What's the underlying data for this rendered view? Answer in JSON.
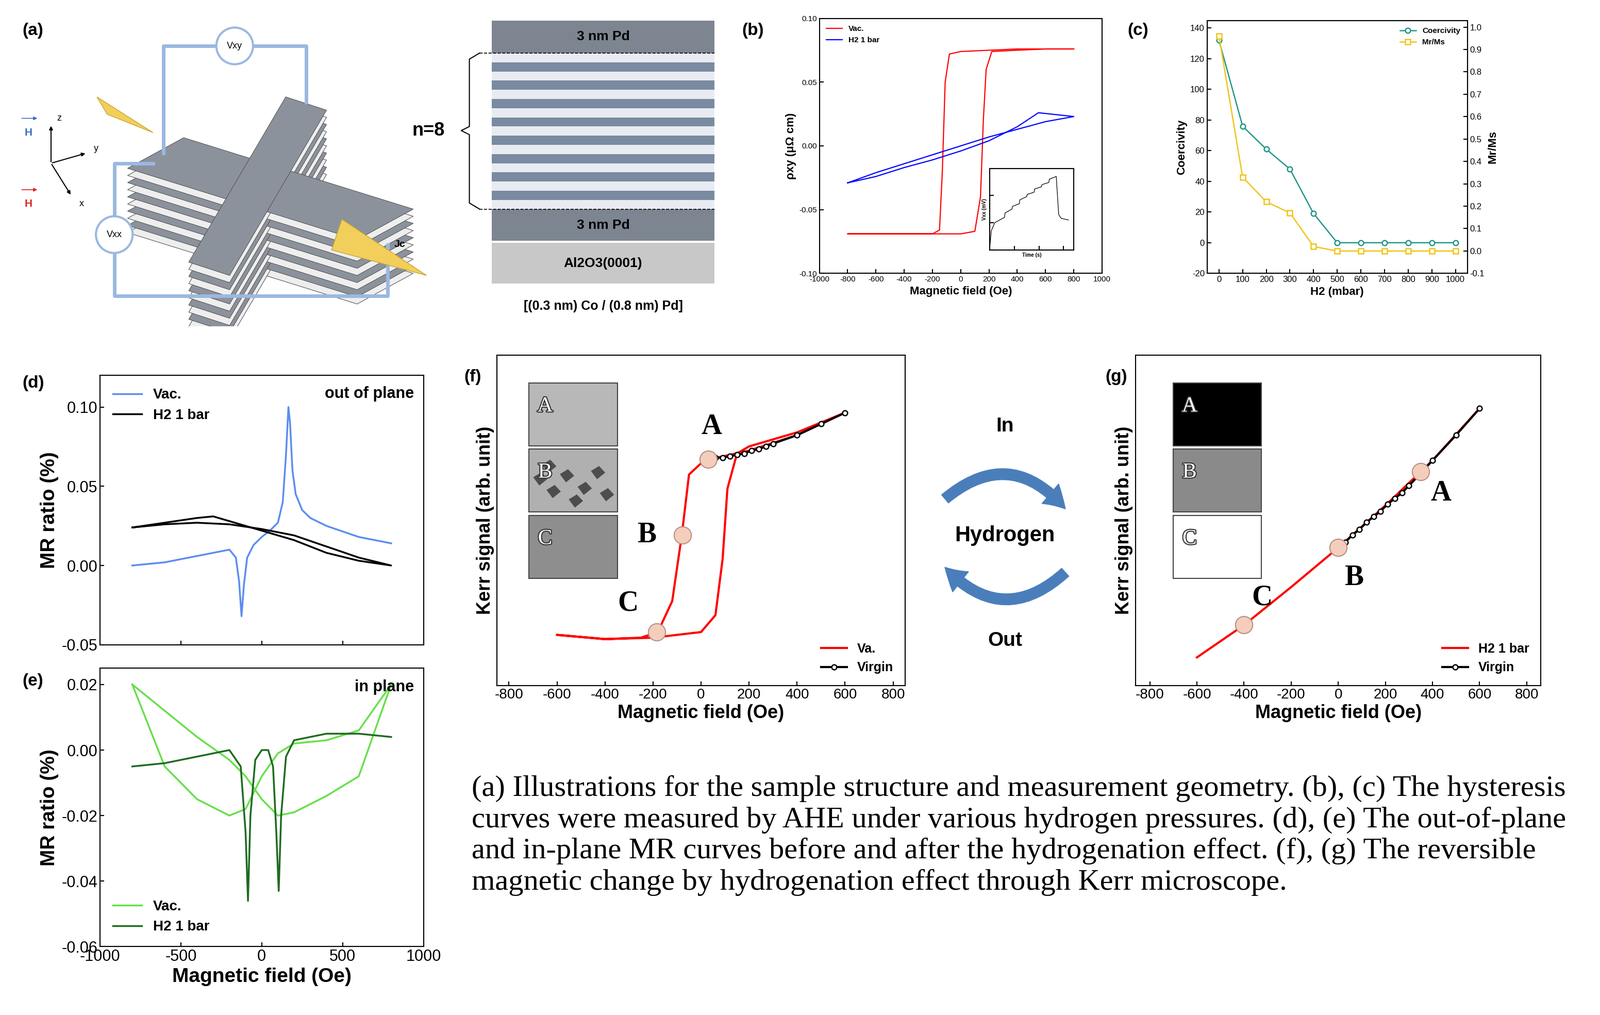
{
  "panel_a": {
    "label": "(a)",
    "device": {
      "voltage_hall": "Vxy",
      "voltage_long": "Vxx",
      "axes": [
        "z",
        "y",
        "x"
      ],
      "field_out_of_plane": "H",
      "field_in_plane": "H",
      "current": "Jc"
    },
    "stack": {
      "top_layer": "3 nm Pd",
      "repeat": "n=8",
      "bottom_layer": "3 nm Pd",
      "substrate": "Al2O3(0001)",
      "repeat_unit": "[(0.3 nm) Co / (0.8 nm) Pd]"
    }
  },
  "chart_data": [
    {
      "panel": "(b)",
      "type": "line",
      "xlabel": "Magnetic field (Oe)",
      "ylabel": "ρxy (μΩ cm)",
      "xlim": [
        -1000,
        1000
      ],
      "xticks": [
        -1000,
        -800,
        -600,
        -400,
        -200,
        0,
        200,
        400,
        600,
        800,
        1000
      ],
      "ylim": [
        -0.1,
        0.1
      ],
      "yticks": [
        {
          "value": -0.1,
          "label": "-0.10"
        },
        -0.05,
        {
          "value": 0.0,
          "label": "0.00"
        },
        0.05,
        {
          "value": 0.1,
          "label": "0.10"
        }
      ],
      "legend": "upper left",
      "series": [
        {
          "name": "Vac.",
          "color": "#ff0000",
          "x": [
            800,
            600,
            400,
            200,
            0,
            -80,
            -110,
            -130,
            -150,
            -200,
            -400,
            -600,
            -800,
            -600,
            -400,
            -200,
            0,
            100,
            140,
            160,
            180,
            220,
            400,
            600,
            800
          ],
          "values": [
            0.076,
            0.076,
            0.076,
            0.075,
            0.074,
            0.072,
            0.05,
            -0.02,
            -0.066,
            -0.069,
            -0.069,
            -0.069,
            -0.069,
            -0.069,
            -0.069,
            -0.069,
            -0.069,
            -0.067,
            -0.04,
            0.02,
            0.06,
            0.074,
            0.075,
            0.076,
            0.076
          ]
        },
        {
          "name": "H2 1 bar",
          "color": "#0000ff",
          "x": [
            -800,
            -600,
            -400,
            -200,
            0,
            200,
            400,
            550,
            800,
            600,
            400,
            200,
            0,
            -200,
            -400,
            -600,
            -800
          ],
          "values": [
            -0.029,
            -0.024,
            -0.017,
            -0.011,
            -0.004,
            0.004,
            0.015,
            0.026,
            0.023,
            0.019,
            0.013,
            0.007,
            0.0,
            -0.007,
            -0.014,
            -0.021,
            -0.029
          ]
        }
      ]
    },
    {
      "type": "line",
      "xlabel": "Time (s)",
      "ylabel": "Vxx (mV)",
      "tick_labels": false,
      "xlim": [
        0,
        1700
      ],
      "xticks": [
        0,
        500,
        1000,
        1500
      ],
      "ylim": [
        0.835,
        0.85
      ],
      "yticks": [
        0.835,
        0.84,
        0.845,
        0.85
      ],
      "series": [
        {
          "name": "Vxx",
          "color": "#000000",
          "x": [
            0,
            30,
            100,
            200,
            300,
            310,
            450,
            460,
            600,
            610,
            750,
            760,
            900,
            910,
            1050,
            1060,
            1200,
            1210,
            1350,
            1400,
            1450,
            1600
          ],
          "values": [
            0.8355,
            0.8385,
            0.84,
            0.8405,
            0.841,
            0.8418,
            0.8425,
            0.843,
            0.8435,
            0.8442,
            0.8448,
            0.8452,
            0.8456,
            0.8462,
            0.8466,
            0.847,
            0.8474,
            0.848,
            0.8485,
            0.8415,
            0.8408,
            0.8405
          ]
        }
      ]
    },
    {
      "panel": "(c)",
      "type": "line",
      "xlabel": "H2 (mbar)",
      "ylabel": "Coercivity",
      "y2label": "Mr/Ms",
      "x": [
        0,
        100,
        200,
        300,
        400,
        500,
        600,
        700,
        800,
        900,
        1000
      ],
      "xlim": [
        -50,
        1050
      ],
      "xticks": [
        0,
        100,
        200,
        300,
        400,
        500,
        600,
        700,
        800,
        900,
        1000
      ],
      "ylim": [
        -20,
        145
      ],
      "yticks": [
        -20,
        0,
        20,
        40,
        60,
        80,
        100,
        120,
        140
      ],
      "y2lim": [
        -0.1,
        1.03
      ],
      "y2ticks": [
        -0.1,
        0.0,
        0.1,
        0.2,
        0.3,
        0.4,
        0.5,
        0.6,
        0.7,
        0.8,
        0.9,
        1.0
      ],
      "legend": "upper right",
      "series": [
        {
          "name": "Coercivity",
          "color": "#23978a",
          "marker": "circle",
          "values": [
            132,
            76,
            61,
            48,
            19,
            0,
            0,
            0,
            0,
            0,
            0
          ]
        },
        {
          "name": "Mr/Ms",
          "color": "#f0c419",
          "marker": "square",
          "axis": "y2",
          "values": [
            0.96,
            0.33,
            0.22,
            0.17,
            0.02,
            0.0,
            0.0,
            0.0,
            0.0,
            0.0,
            0.0
          ]
        }
      ]
    },
    {
      "panel": "(d)",
      "type": "line",
      "ylabel": "MR ratio (%)",
      "annotation": "out of plane",
      "tick_labels": "y",
      "xlim": [
        -1000,
        1000
      ],
      "xticks": [
        -1000,
        -500,
        0,
        500,
        1000
      ],
      "ylim": [
        -0.05,
        0.12
      ],
      "yticks": [
        -0.05,
        {
          "value": 0.0,
          "label": "0.00"
        },
        0.05,
        {
          "value": 0.1,
          "label": "0.10"
        }
      ],
      "legend": "upper left",
      "series": [
        {
          "name": "Vac.",
          "color": "#5b8def",
          "x": [
            -800,
            -600,
            -400,
            -300,
            -200,
            -160,
            -140,
            -125,
            -110,
            -90,
            -50,
            0,
            50,
            100,
            130,
            150,
            165,
            175,
            190,
            210,
            250,
            300,
            400,
            600,
            800
          ],
          "values": [
            0.0,
            0.002,
            0.006,
            0.008,
            0.01,
            0.005,
            -0.01,
            -0.032,
            -0.012,
            0.005,
            0.013,
            0.018,
            0.022,
            0.027,
            0.04,
            0.07,
            0.1,
            0.09,
            0.06,
            0.045,
            0.035,
            0.03,
            0.025,
            0.018,
            0.014
          ]
        },
        {
          "name": "H2 1 bar",
          "color": "#000000",
          "x": [
            -800,
            -600,
            -400,
            -200,
            0,
            200,
            400,
            600,
            800,
            600,
            400,
            200,
            0,
            -200,
            -300,
            -400,
            -600,
            -800
          ],
          "values": [
            0.024,
            0.026,
            0.027,
            0.026,
            0.023,
            0.019,
            0.012,
            0.005,
            0.0,
            0.003,
            0.008,
            0.016,
            0.022,
            0.028,
            0.031,
            0.03,
            0.027,
            0.024
          ]
        }
      ]
    },
    {
      "panel": "(e)",
      "type": "line",
      "xlabel": "Magnetic field (Oe)",
      "ylabel": "MR ratio (%)",
      "annotation": "in plane",
      "xlim": [
        -1000,
        1000
      ],
      "xticks": [
        -1000,
        -500,
        0,
        500,
        1000
      ],
      "ylim": [
        -0.06,
        0.025
      ],
      "yticks": [
        -0.06,
        -0.04,
        -0.02,
        {
          "value": 0.0,
          "label": "0.00"
        },
        0.02
      ],
      "legend": "lower left",
      "series": [
        {
          "name": "Vac.",
          "color": "#66e04a",
          "x": [
            -800,
            -600,
            -400,
            -200,
            -100,
            0,
            100,
            200,
            400,
            600,
            800,
            600,
            400,
            200,
            100,
            0,
            -100,
            -200,
            -400,
            -600,
            -800
          ],
          "values": [
            0.02,
            0.012,
            0.004,
            -0.003,
            -0.008,
            -0.015,
            -0.02,
            -0.019,
            -0.014,
            -0.008,
            0.02,
            0.006,
            0.003,
            0.002,
            -0.001,
            -0.008,
            -0.018,
            -0.02,
            -0.015,
            -0.005,
            0.02
          ]
        },
        {
          "name": "H2 1 bar",
          "color": "#1e6b1e",
          "x": [
            -800,
            -600,
            -400,
            -200,
            -130,
            -100,
            -85,
            -70,
            -40,
            0,
            40,
            70,
            90,
            105,
            120,
            150,
            200,
            400,
            600,
            800
          ],
          "values": [
            -0.005,
            -0.004,
            -0.002,
            0.0,
            -0.005,
            -0.025,
            -0.046,
            -0.02,
            -0.003,
            0.0,
            0.0,
            -0.005,
            -0.025,
            -0.043,
            -0.02,
            -0.002,
            0.003,
            0.005,
            0.005,
            0.004
          ]
        }
      ]
    },
    {
      "panel": "(f)",
      "type": "line",
      "xlabel": "Magnetic field (Oe)",
      "ylabel": "Kerr signal (arb. unit)",
      "tick_labels": "x",
      "xlim": [
        -850,
        850
      ],
      "xticks": [
        -800,
        -600,
        -400,
        -200,
        0,
        200,
        400,
        600,
        800
      ],
      "ylim": [
        -1.2,
        1.15
      ],
      "legend": "lower right",
      "series": [
        {
          "name": "Va.",
          "color": "#ff0000",
          "x": [
            600,
            400,
            200,
            40,
            0,
            -50,
            -80,
            -120,
            -180,
            -250,
            -400,
            -600,
            -400,
            -200,
            0,
            60,
            90,
            110,
            150,
            200,
            400,
            600
          ],
          "values": [
            0.74,
            0.58,
            0.47,
            0.41,
            0.38,
            0.3,
            -0.13,
            -0.6,
            -0.82,
            -0.86,
            -0.87,
            -0.84,
            -0.87,
            -0.86,
            -0.82,
            -0.7,
            -0.3,
            0.2,
            0.45,
            0.5,
            0.6,
            0.74
          ]
        },
        {
          "name": "Virgin",
          "color": "#000000",
          "marker": "circle",
          "x": [
            30,
            60,
            90,
            120,
            150,
            180,
            210,
            240,
            270,
            300,
            400,
            500,
            600
          ],
          "values": [
            0.41,
            0.42,
            0.42,
            0.43,
            0.44,
            0.45,
            0.47,
            0.48,
            0.5,
            0.52,
            0.58,
            0.66,
            0.74
          ]
        }
      ],
      "annotations": [
        {
          "text": "A",
          "x": 30,
          "y": 0.41
        },
        {
          "text": "B",
          "x": -78,
          "y": -0.13
        },
        {
          "text": "C",
          "x": -184,
          "y": -0.82
        }
      ],
      "images": [
        {
          "label": "A",
          "color": "#b8b8b8"
        },
        {
          "label": "B",
          "color": "#b0b0b0"
        },
        {
          "label": "C",
          "color": "#8e8e8e"
        }
      ]
    },
    {
      "panel": "(g)",
      "type": "line",
      "xlabel": "Magnetic field (Oe)",
      "ylabel": "Kerr signal (arb. unit)",
      "tick_labels": "x",
      "xlim": [
        -860,
        860
      ],
      "xticks": [
        -800,
        -600,
        -400,
        -200,
        0,
        200,
        400,
        600,
        800
      ],
      "ylim": [
        -1.2,
        1.15
      ],
      "legend": "lower right",
      "series": [
        {
          "name": "H2 1 bar",
          "color": "#ff0000",
          "x": [
            -600,
            -400,
            -200,
            0,
            200,
            400,
            600
          ],
          "values": [
            -1.0,
            -0.77,
            -0.5,
            -0.22,
            0.08,
            0.4,
            0.77
          ]
        },
        {
          "name": "Virgin",
          "color": "#000000",
          "marker": "circle",
          "x": [
            0,
            30,
            60,
            90,
            120,
            150,
            180,
            210,
            240,
            270,
            300,
            400,
            500,
            600
          ],
          "values": [
            -0.22,
            -0.18,
            -0.13,
            -0.09,
            -0.04,
            0.0,
            0.04,
            0.09,
            0.13,
            0.17,
            0.22,
            0.4,
            0.58,
            0.77
          ]
        }
      ],
      "annotations": [
        {
          "text": "A",
          "x": 350,
          "y": 0.32
        },
        {
          "text": "B",
          "x": 0,
          "y": -0.22
        },
        {
          "text": "C",
          "x": -400,
          "y": -0.77
        }
      ],
      "images": [
        {
          "label": "A",
          "color": "#000000"
        },
        {
          "label": "B",
          "color": "#8a8a8a"
        },
        {
          "label": "C",
          "color": "#ffffff"
        }
      ]
    }
  ],
  "hydrogen_cycle": {
    "top": "In",
    "middle": "Hydrogen",
    "bottom": "Out"
  },
  "caption": "(a) Illustrations for the sample structure and measurement geometry. (b), (c) The hysteresis curves were measured by AHE under various hydrogen pressures. (d), (e) The out-of-plane and in-plane MR curves before and after the hydrogenation effect. (f), (g) The reversible magnetic change by hydrogenation effect through Kerr microscope."
}
